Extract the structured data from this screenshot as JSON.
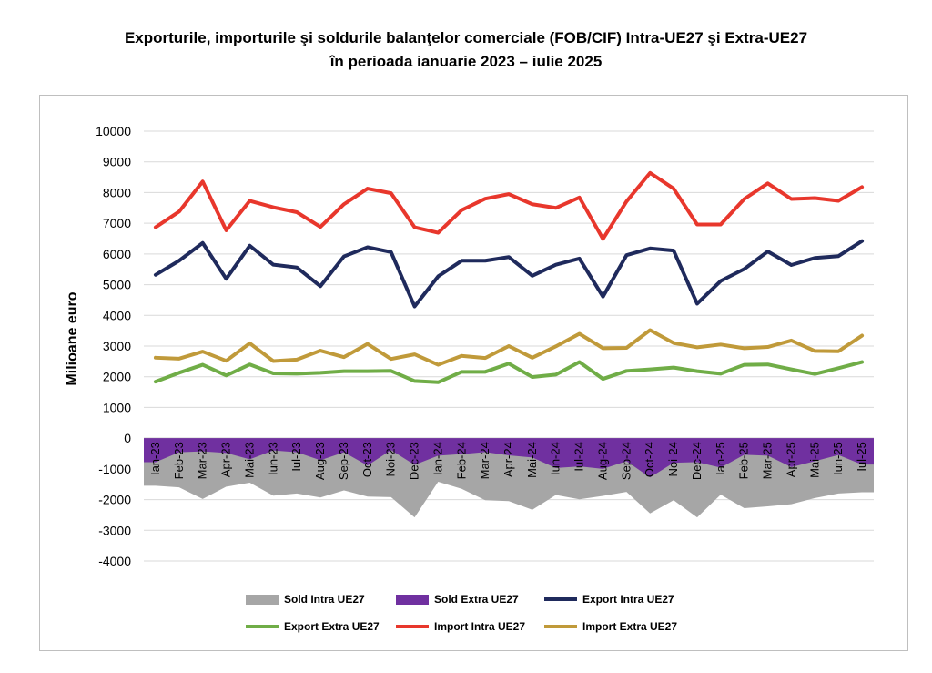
{
  "title_line1": "Exporturile, importurile şi soldurile balanţelor comerciale (FOB/CIF) Intra-UE27 şi Extra-UE27",
  "title_line2": "în perioada ianuarie 2023 – iulie 2025",
  "chart_data": {
    "type": "line",
    "ylabel": "Milioane euro",
    "xlabel": "",
    "ylim": [
      -4000,
      10000
    ],
    "yticks": [
      10000,
      9000,
      8000,
      7000,
      6000,
      5000,
      4000,
      3000,
      2000,
      1000,
      0,
      -1000,
      -2000,
      -3000,
      -4000
    ],
    "grid": true,
    "legend_position": "bottom",
    "categories": [
      "Ian-23",
      "Feb-23",
      "Mar-23",
      "Apr-23",
      "Mai-23",
      "Iun-23",
      "Iul-23",
      "Aug-23",
      "Sep-23",
      "Oct-23",
      "Noi-23",
      "Dec-23",
      "Ian-24",
      "Feb-24",
      "Mar-24",
      "Apr-24",
      "Mai-24",
      "Iun-24",
      "Iul-24",
      "Aug-24",
      "Sep-24",
      "Oct-24",
      "Noi-24",
      "Dec-24",
      "Ian-25",
      "Feb-25",
      "Mar-25",
      "Apr-25",
      "Mai-25",
      "Iun-25",
      "Iul-25"
    ],
    "series": [
      {
        "name": "Sold Intra UE27",
        "kind": "area",
        "color": "#a6a6a6",
        "values": [
          -1550,
          -1600,
          -1980,
          -1580,
          -1450,
          -1870,
          -1800,
          -1930,
          -1700,
          -1900,
          -1920,
          -2580,
          -1420,
          -1650,
          -2020,
          -2050,
          -2330,
          -1850,
          -1990,
          -1880,
          -1750,
          -2450,
          -2020,
          -2580,
          -1840,
          -2280,
          -2220,
          -2150,
          -1950,
          -1800,
          -1760
        ]
      },
      {
        "name": "Sold Extra UE27",
        "kind": "area",
        "color": "#7030a0",
        "values": [
          -780,
          -460,
          -430,
          -480,
          -690,
          -400,
          -460,
          -720,
          -460,
          -890,
          -390,
          -870,
          -570,
          -520,
          -450,
          -560,
          -630,
          -970,
          -920,
          -1000,
          -750,
          -1280,
          -800,
          -780,
          -960,
          -540,
          -570,
          -940,
          -750,
          -550,
          -860
        ]
      },
      {
        "name": "Export Intra UE27",
        "kind": "line",
        "color": "#1f2a5c",
        "values": [
          5320,
          5780,
          6360,
          5190,
          6270,
          5650,
          5560,
          4950,
          5920,
          6220,
          6060,
          4290,
          5270,
          5780,
          5780,
          5900,
          5290,
          5650,
          5850,
          4610,
          5960,
          6180,
          6110,
          4380,
          5120,
          5510,
          6080,
          5640,
          5870,
          5930,
          6420
        ]
      },
      {
        "name": "Export Extra UE27",
        "kind": "line",
        "color": "#70ad47",
        "values": [
          1840,
          2130,
          2390,
          2040,
          2400,
          2110,
          2100,
          2130,
          2180,
          2180,
          2190,
          1860,
          1820,
          2160,
          2160,
          2430,
          1990,
          2070,
          2480,
          1930,
          2190,
          2240,
          2300,
          2180,
          2100,
          2390,
          2400,
          2240,
          2090,
          2280,
          2480
        ]
      },
      {
        "name": "Import Intra UE27",
        "kind": "line",
        "color": "#e8372c",
        "values": [
          6870,
          7380,
          8360,
          6770,
          7730,
          7520,
          7360,
          6880,
          7620,
          8130,
          7980,
          6870,
          6690,
          7430,
          7800,
          7950,
          7620,
          7500,
          7840,
          6490,
          7710,
          8640,
          8130,
          6960,
          6960,
          7790,
          8300,
          7790,
          7820,
          7730,
          8180
        ]
      },
      {
        "name": "Import Extra UE27",
        "kind": "line",
        "color": "#c09a3a",
        "values": [
          2620,
          2590,
          2820,
          2520,
          3090,
          2510,
          2560,
          2850,
          2640,
          3070,
          2580,
          2730,
          2390,
          2680,
          2610,
          3000,
          2620,
          2990,
          3400,
          2930,
          2940,
          3520,
          3100,
          2960,
          3050,
          2930,
          2970,
          3180,
          2840,
          2830,
          3340
        ]
      }
    ]
  }
}
